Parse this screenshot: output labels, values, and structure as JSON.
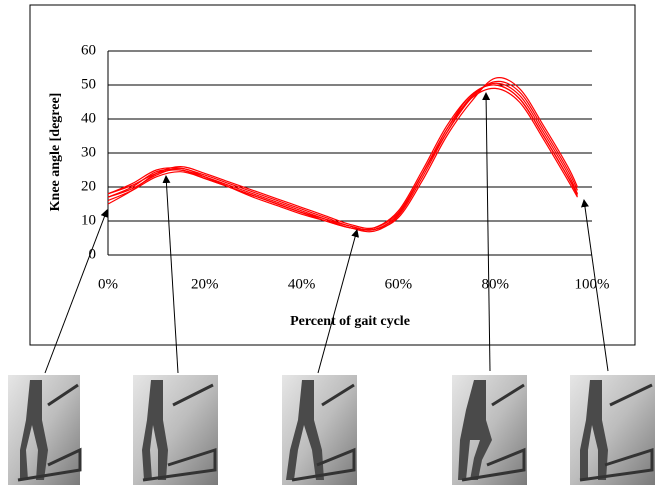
{
  "chart_data": {
    "type": "line",
    "x_label": "Percent of gait cycle",
    "y_label": "Knee angle [degree]",
    "x": [
      0,
      5,
      10,
      15,
      20,
      25,
      30,
      35,
      40,
      45,
      50,
      55,
      60,
      65,
      70,
      75,
      80,
      85,
      90,
      95,
      97
    ],
    "series": [
      {
        "color": "#ff0000",
        "values": [
          17,
          20,
          24.5,
          25,
          23,
          20.5,
          18,
          15.5,
          13,
          10.5,
          8,
          8,
          13,
          25,
          38,
          47,
          50,
          46,
          35,
          23,
          18
        ]
      },
      {
        "color": "#ff0000",
        "values": [
          18,
          21,
          25,
          25.5,
          23.5,
          21,
          18.5,
          16,
          13.5,
          11,
          8.5,
          7.5,
          12,
          24,
          37,
          46,
          49,
          45,
          34,
          22,
          17
        ]
      },
      {
        "color": "#ff0000",
        "values": [
          15,
          19,
          24,
          26,
          24,
          21.5,
          19,
          16.5,
          14,
          11.5,
          9,
          8,
          12.5,
          24,
          36,
          46,
          51,
          48,
          37,
          25,
          19
        ]
      },
      {
        "color": "#ff0000",
        "values": [
          18,
          20.5,
          24,
          25,
          22.5,
          20,
          17.5,
          15,
          12.5,
          10,
          8,
          7.5,
          11,
          22,
          35,
          45,
          52,
          49,
          38,
          26,
          20
        ]
      },
      {
        "color": "#ff0000",
        "values": [
          17,
          19.5,
          23.5,
          25.5,
          23,
          20,
          17,
          14.5,
          12,
          10,
          8,
          7,
          11.5,
          23,
          36,
          46.5,
          50.5,
          47,
          36,
          24,
          18
        ]
      },
      {
        "color": "#ff0000",
        "values": [
          16,
          19,
          23,
          24.5,
          22.5,
          20,
          17.5,
          15,
          12.5,
          10.5,
          8.5,
          7.5,
          12,
          24,
          37,
          47,
          50,
          46,
          35,
          23,
          17.5
        ]
      }
    ],
    "xlim": [
      0,
      100
    ],
    "ylim": [
      0,
      60
    ],
    "xticks": [
      {
        "value": 0,
        "label": "0%"
      },
      {
        "value": 20,
        "label": "20%"
      },
      {
        "value": 40,
        "label": "40%"
      },
      {
        "value": 60,
        "label": "60%"
      },
      {
        "value": 80,
        "label": "80%"
      },
      {
        "value": 100,
        "label": "100%"
      }
    ],
    "yticks": [
      0,
      10,
      20,
      30,
      40,
      50,
      60
    ],
    "grid": true
  }
}
